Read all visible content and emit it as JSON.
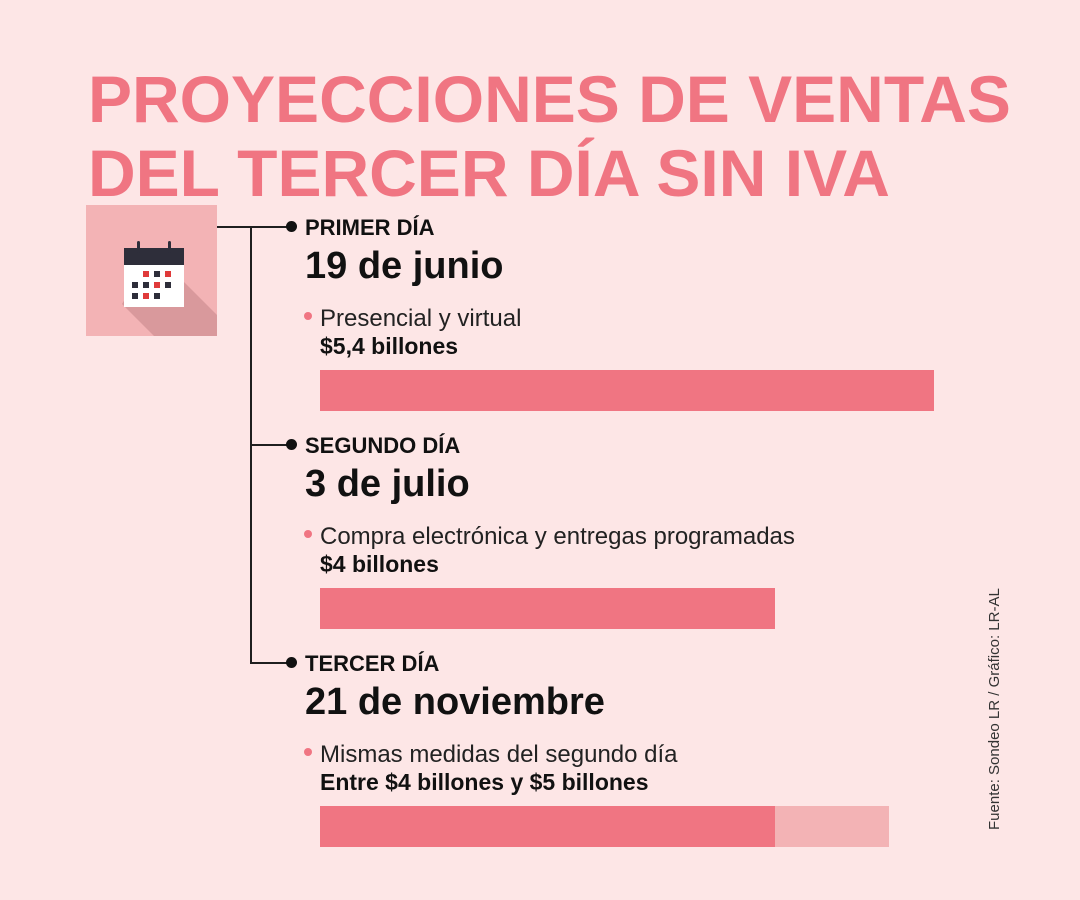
{
  "title": {
    "line1": "PROYECCIONES DE VENTAS",
    "line2": "DEL TERCER DÍA SIN IVA"
  },
  "icon": "calendar-icon",
  "colors": {
    "background": "#fde6e6",
    "accent": "#f07582",
    "light_accent": "#f3b3b5",
    "text": "#111111"
  },
  "chart_data": {
    "type": "bar",
    "orientation": "horizontal",
    "unit": "billones",
    "categories": [
      "PRIMER DÍA",
      "SEGUNDO DÍA",
      "TERCER DÍA"
    ],
    "values": [
      5.4,
      4,
      4
    ],
    "range_max": [
      null,
      null,
      5
    ],
    "xlim": [
      0,
      5.4
    ]
  },
  "days": [
    {
      "label": "PRIMER DÍA",
      "date": "19 de junio",
      "description": "Presencial y virtual",
      "amount": "$5,4 billones"
    },
    {
      "label": "SEGUNDO DÍA",
      "date": "3 de julio",
      "description": "Compra electrónica y entregas programadas",
      "amount": "$4 billones"
    },
    {
      "label": "TERCER DÍA",
      "date": "21 de noviembre",
      "description": "Mismas medidas del segundo día",
      "amount": "Entre $4 billones y $5 billones"
    }
  ],
  "source": "Fuente: Sondeo LR / Gráfico: LR-AL"
}
